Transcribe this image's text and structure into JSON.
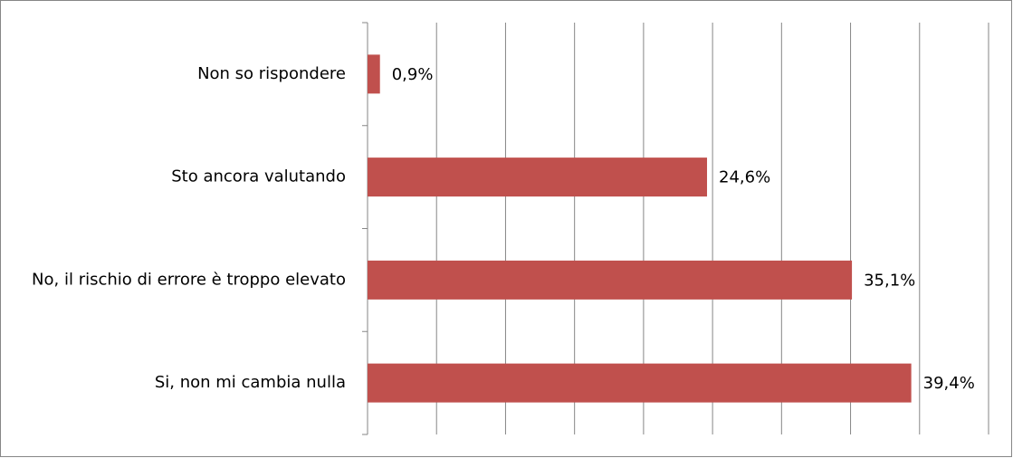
{
  "chart_data": {
    "type": "hbar",
    "categories": [
      "Non so rispondere",
      "Sto ancora valutando",
      "No, il rischio di errore è troppo elevato",
      "Si, non mi cambia nulla"
    ],
    "values": [
      0.9,
      24.6,
      35.1,
      39.4
    ],
    "value_labels": [
      "0,9%",
      "24,6%",
      "35,1%",
      "39,4%"
    ],
    "color": "#c0504d",
    "xlim": [
      0,
      45
    ],
    "xticks": [
      0,
      5,
      10,
      15,
      20,
      25,
      30,
      35,
      40,
      45
    ],
    "grid": true
  }
}
